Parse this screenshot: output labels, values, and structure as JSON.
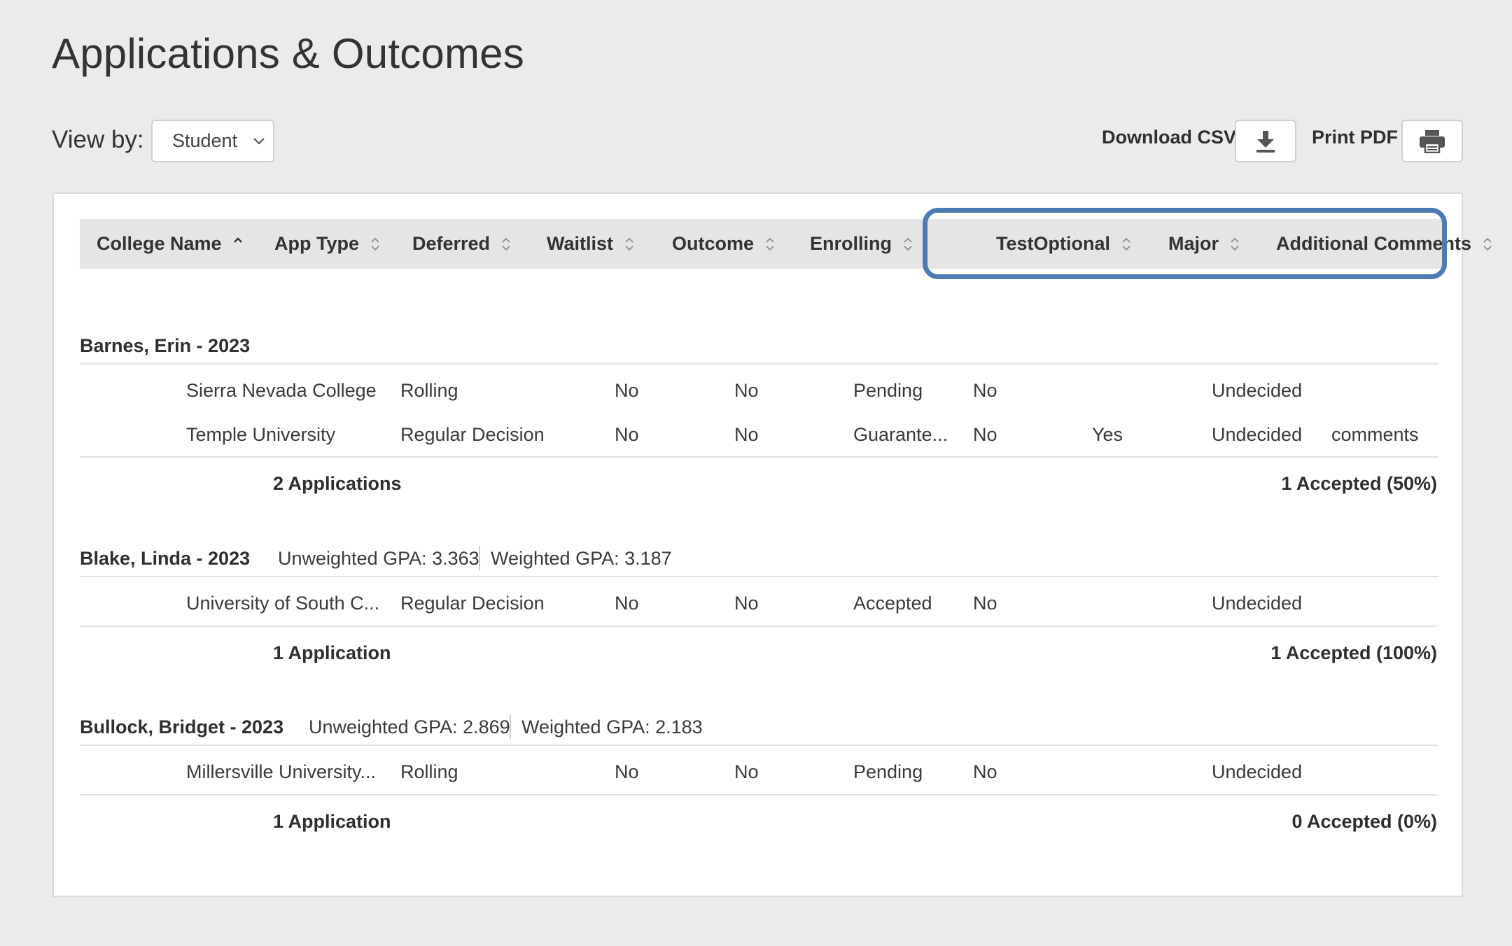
{
  "page_title": "Applications & Outcomes",
  "view_by": {
    "label": "View by:",
    "selected": "Student"
  },
  "toolbar": {
    "download_label": "Download CSV",
    "print_label": "Print PDF"
  },
  "table": {
    "columns": [
      "College Name",
      "App Type",
      "Deferred",
      "Waitlist",
      "Outcome",
      "Enrolling",
      "TestOptional",
      "Major",
      "Additional Comments"
    ],
    "groups": [
      {
        "name": "Barnes, Erin - 2023",
        "unweighted_gpa": "",
        "weighted_gpa": "",
        "rows": [
          [
            "Sierra Nevada College",
            "Rolling",
            "No",
            "No",
            "Pending",
            "No",
            "",
            "Undecided",
            ""
          ],
          [
            "Temple University",
            "Regular Decision",
            "No",
            "No",
            "Guarante...",
            "No",
            "Yes",
            "Undecided",
            "comments"
          ]
        ],
        "summary_count": "2 Applications",
        "summary_accepted": "1 Accepted (50%)"
      },
      {
        "name": "Blake, Linda - 2023",
        "unweighted_gpa": "Unweighted GPA: 3.363",
        "weighted_gpa": "Weighted GPA: 3.187",
        "rows": [
          [
            "University of South C...",
            "Regular Decision",
            "No",
            "No",
            "Accepted",
            "No",
            "",
            "Undecided",
            ""
          ]
        ],
        "summary_count": "1 Application",
        "summary_accepted": "1 Accepted (100%)"
      },
      {
        "name": "Bullock, Bridget - 2023",
        "unweighted_gpa": "Unweighted GPA: 2.869",
        "weighted_gpa": "Weighted GPA: 2.183",
        "rows": [
          [
            "Millersville University...",
            "Rolling",
            "No",
            "No",
            "Pending",
            "No",
            "",
            "Undecided",
            ""
          ]
        ],
        "summary_count": "1 Application",
        "summary_accepted": "0 Accepted (0%)"
      }
    ]
  },
  "colors": {
    "background": "#ebebeb",
    "header_bg": "#e5e5e5",
    "highlight": "#4a7bb2"
  }
}
